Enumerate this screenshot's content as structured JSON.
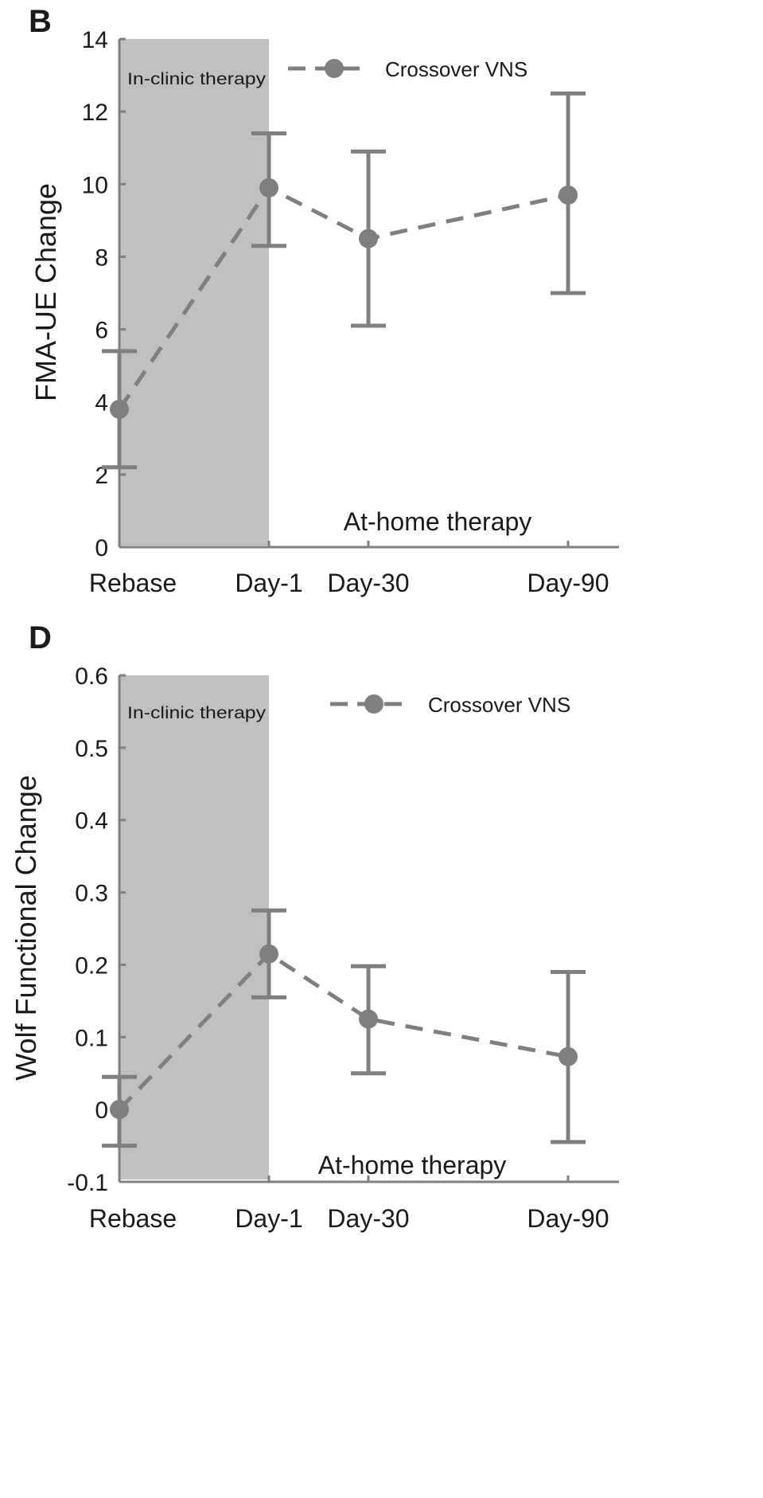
{
  "chart_data": [
    {
      "panel_label": "B",
      "type": "line",
      "ylabel": "FMA-UE Change",
      "ylim": [
        0,
        14
      ],
      "yticks": [
        "0",
        "2",
        "4",
        "6",
        "8",
        "10",
        "12",
        "14"
      ],
      "x_ticks": [
        {
          "label": "Rebase",
          "x": 0
        },
        {
          "label": "Day-1",
          "x": 1
        },
        {
          "label": "Day-30",
          "x": 30
        },
        {
          "label": "Day-90",
          "x": 90
        }
      ],
      "shaded_region": {
        "label": "In-clinic therapy",
        "x_from": 0,
        "x_to": 1,
        "color": "#c0c0c0"
      },
      "region_annotation": "At-home therapy",
      "series": [
        {
          "name": "Crossover VNS",
          "color": "#7f7f7f",
          "line_style": "dashed",
          "marker": "circle",
          "points": [
            {
              "x": 0,
              "y": 3.8,
              "err_low": 2.2,
              "err_high": 5.4
            },
            {
              "x": 1,
              "y": 9.9,
              "err_low": 8.3,
              "err_high": 11.4
            },
            {
              "x": 30,
              "y": 8.5,
              "err_low": 6.1,
              "err_high": 10.9
            },
            {
              "x": 90,
              "y": 9.7,
              "err_low": 7.0,
              "err_high": 12.5
            }
          ]
        }
      ],
      "grid": false,
      "legend_position": "top-right"
    },
    {
      "panel_label": "D",
      "type": "line",
      "ylabel": "Wolf Functional Change",
      "ylim": [
        -0.1,
        0.6
      ],
      "yticks": [
        "-0.1",
        "0",
        "0.1",
        "0.2",
        "0.3",
        "0.4",
        "0.5",
        "0.6"
      ],
      "x_ticks": [
        {
          "label": "Rebase",
          "x": 0
        },
        {
          "label": "Day-1",
          "x": 1
        },
        {
          "label": "Day-30",
          "x": 30
        },
        {
          "label": "Day-90",
          "x": 90
        }
      ],
      "shaded_region": {
        "label": "In-clinic therapy",
        "x_from": 0,
        "x_to": 1,
        "color": "#c0c0c0"
      },
      "region_annotation": "At-home therapy",
      "series": [
        {
          "name": "Crossover VNS",
          "color": "#7f7f7f",
          "line_style": "dashed",
          "marker": "circle",
          "points": [
            {
              "x": 0,
              "y": 0.0,
              "err_low": -0.05,
              "err_high": 0.045
            },
            {
              "x": 1,
              "y": 0.215,
              "err_low": 0.155,
              "err_high": 0.275
            },
            {
              "x": 30,
              "y": 0.125,
              "err_low": 0.05,
              "err_high": 0.198
            },
            {
              "x": 90,
              "y": 0.073,
              "err_low": -0.045,
              "err_high": 0.19
            }
          ]
        }
      ],
      "grid": false,
      "legend_position": "top-right"
    }
  ]
}
